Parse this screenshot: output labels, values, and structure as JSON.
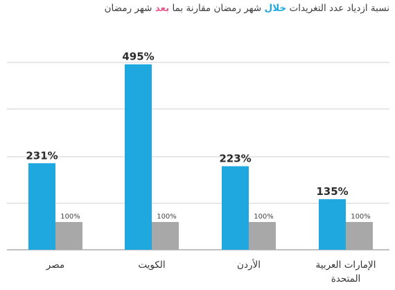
{
  "chart_data": {
    "type": "bar",
    "title_parts": {
      "p1": "نسبة ازدياد عدد التغريدات ",
      "h1": "خلال",
      "p2": " شهر رمضان مقارنة بما ",
      "h2": "بعد",
      "p3": " شهر رمضان"
    },
    "categories": [
      [
        "مصر"
      ],
      [
        "الكويت"
      ],
      [
        "الأردن"
      ],
      [
        "الإمارات العربية",
        "المتحدة"
      ]
    ],
    "series": [
      {
        "values": [
          231,
          495,
          223,
          135
        ],
        "labels": [
          "231%",
          "495%",
          "223%",
          "135%"
        ]
      },
      {
        "values": [
          100,
          100,
          100,
          100
        ],
        "labels": [
          "100%",
          "100%",
          "100%",
          "100%"
        ]
      }
    ],
    "ylim": [
      0,
      500
    ],
    "grid": true,
    "colors": {
      "primary": "#1fa8e0",
      "baseline": "#a8a8a8",
      "grid": "#cfcfcf",
      "highlight_blue": "#1fa8e0",
      "highlight_pink": "#e25a8e"
    }
  }
}
